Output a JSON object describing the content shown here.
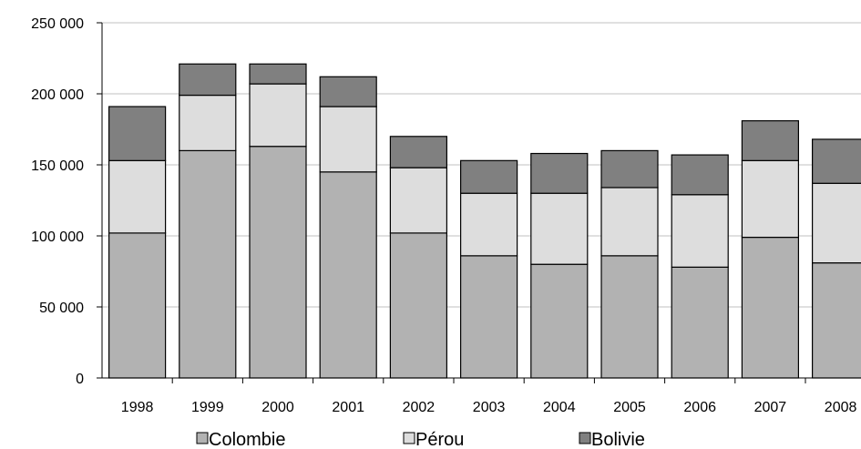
{
  "chart_data": {
    "type": "bar",
    "stacked": true,
    "categories": [
      "1998",
      "1999",
      "2000",
      "2001",
      "2002",
      "2003",
      "2004",
      "2005",
      "2006",
      "2007",
      "2008"
    ],
    "series": [
      {
        "name": "Colombie",
        "color": "#b2b2b2",
        "values": [
          102000,
          160000,
          163000,
          145000,
          102000,
          86000,
          80000,
          86000,
          78000,
          99000,
          81000
        ]
      },
      {
        "name": "Pérou",
        "color": "#dddddd",
        "values": [
          51000,
          39000,
          44000,
          46000,
          46000,
          44000,
          50000,
          48000,
          51000,
          54000,
          56000
        ]
      },
      {
        "name": "Bolivie",
        "color": "#808080",
        "values": [
          38000,
          22000,
          14000,
          21000,
          22000,
          23000,
          28000,
          26000,
          28000,
          28000,
          31000
        ]
      }
    ],
    "yticks": [
      "0",
      "50 000",
      "100 000",
      "150 000",
      "200 000",
      "250 000"
    ],
    "ylim": [
      0,
      250000
    ],
    "grid": true,
    "legend": "bottom",
    "title": "",
    "xlabel": "",
    "ylabel": ""
  }
}
